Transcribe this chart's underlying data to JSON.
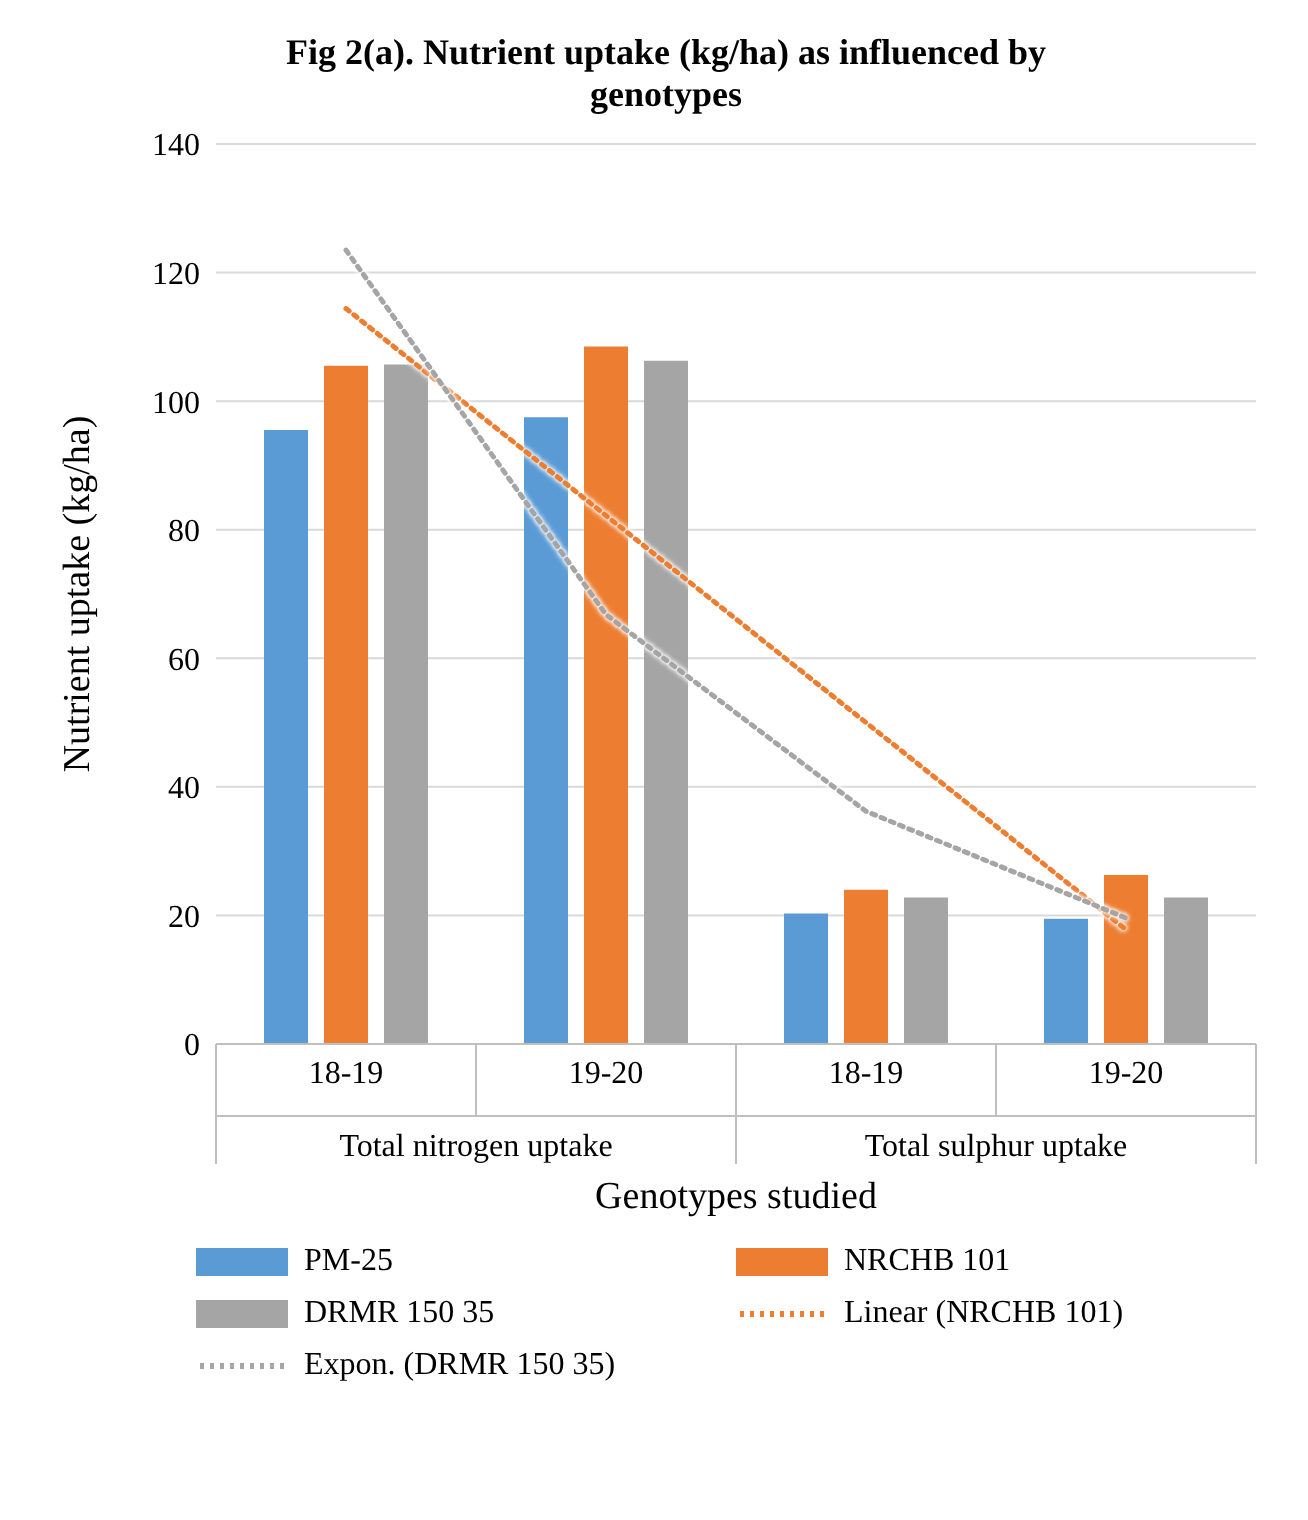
{
  "chart_data": {
    "type": "bar",
    "title": "Fig 2(a). Nutrient uptake (kg/ha) as influenced by genotypes",
    "xlabel": "Genotypes studied",
    "ylabel": "Nutrient uptake (kg/ha)",
    "categories": [
      "18-19",
      "19-20",
      "18-19",
      "19-20"
    ],
    "annotations": [
      "Total nitrogen uptake",
      "Total sulphur uptake"
    ],
    "series": [
      {
        "name": "PM-25",
        "color": "#5b9bd5",
        "values": [
          95.5,
          97.5,
          20.3,
          19.5
        ]
      },
      {
        "name": "NRCHB 101",
        "color": "#ed7d31",
        "values": [
          105.5,
          108.5,
          24,
          26.3
        ]
      },
      {
        "name": "DRMR 150 35",
        "color": "#a5a5a5",
        "values": [
          105.7,
          106.3,
          22.8,
          22.8
        ]
      },
      {
        "name": "Linear (NRCHB 101)",
        "type": "line",
        "line_style": "dotted",
        "color": "#ed7d31",
        "values": [
          114.4,
          82.2,
          50,
          17.8
        ]
      },
      {
        "name": "Expon. (DRMR 150 35)",
        "type": "line",
        "line_style": "dotted",
        "color": "#a5a5a5",
        "values": [
          123.5,
          66.8,
          36.2,
          19.6
        ]
      }
    ],
    "ylim": [
      0,
      140
    ],
    "yticks": [
      0,
      20,
      40,
      60,
      80,
      100,
      120,
      140
    ],
    "grid": "y",
    "legend": "bottom"
  }
}
